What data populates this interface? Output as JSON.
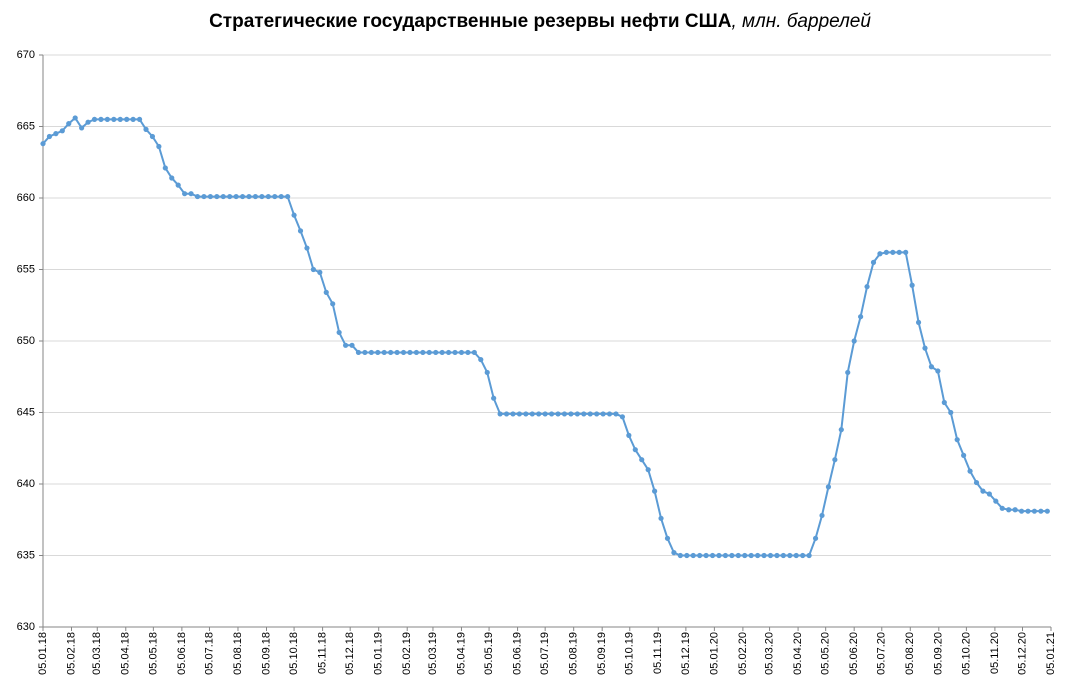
{
  "chart_data": {
    "type": "line",
    "title": "Стратегические государственные резервы нефти США",
    "subtitle": ", млн. баррелей",
    "color": "#5b9bd5",
    "grid": true,
    "x": [
      "05.01.18",
      "12.01.18",
      "19.01.18",
      "26.01.18",
      "02.02.18",
      "09.02.18",
      "16.02.18",
      "23.02.18",
      "02.03.18",
      "09.03.18",
      "16.03.18",
      "23.03.18",
      "30.03.18",
      "06.04.18",
      "13.04.18",
      "20.04.18",
      "27.04.18",
      "04.05.18",
      "11.05.18",
      "18.05.18",
      "25.05.18",
      "01.06.18",
      "08.06.18",
      "15.06.18",
      "22.06.18",
      "29.06.18",
      "06.07.18",
      "13.07.18",
      "20.07.18",
      "27.07.18",
      "03.08.18",
      "10.08.18",
      "17.08.18",
      "24.08.18",
      "31.08.18",
      "07.09.18",
      "14.09.18",
      "21.09.18",
      "28.09.18",
      "05.10.18",
      "12.10.18",
      "19.10.18",
      "26.10.18",
      "02.11.18",
      "09.11.18",
      "16.11.18",
      "23.11.18",
      "30.11.18",
      "07.12.18",
      "14.12.18",
      "21.12.18",
      "28.12.18",
      "04.01.19",
      "11.01.19",
      "18.01.19",
      "25.01.19",
      "01.02.19",
      "08.02.19",
      "15.02.19",
      "22.02.19",
      "01.03.19",
      "08.03.19",
      "15.03.19",
      "22.03.19",
      "29.03.19",
      "05.04.19",
      "12.04.19",
      "19.04.19",
      "26.04.19",
      "03.05.19",
      "10.05.19",
      "17.05.19",
      "24.05.19",
      "31.05.19",
      "07.06.19",
      "14.06.19",
      "21.06.19",
      "28.06.19",
      "05.07.19",
      "12.07.19",
      "19.07.19",
      "26.07.19",
      "02.08.19",
      "09.08.19",
      "16.08.19",
      "23.08.19",
      "30.08.19",
      "06.09.19",
      "13.09.19",
      "20.09.19",
      "27.09.19",
      "04.10.19",
      "11.10.19",
      "18.10.19",
      "25.10.19",
      "01.11.19",
      "08.11.19",
      "15.11.19",
      "22.11.19",
      "29.11.19",
      "06.12.19",
      "13.12.19",
      "20.12.19",
      "27.12.19",
      "03.01.20",
      "10.01.20",
      "17.01.20",
      "24.01.20",
      "31.01.20",
      "07.02.20",
      "14.02.20",
      "21.02.20",
      "28.02.20",
      "06.03.20",
      "13.03.20",
      "20.03.20",
      "27.03.20",
      "03.04.20",
      "10.04.20",
      "17.04.20",
      "24.04.20",
      "01.05.20",
      "08.05.20",
      "15.05.20",
      "22.05.20",
      "29.05.20",
      "05.06.20",
      "12.06.20",
      "19.06.20",
      "26.06.20",
      "03.07.20",
      "10.07.20",
      "17.07.20",
      "24.07.20",
      "31.07.20",
      "07.08.20",
      "14.08.20",
      "21.08.20",
      "28.08.20",
      "04.09.20",
      "11.09.20",
      "18.09.20",
      "25.09.20",
      "02.10.20",
      "09.10.20",
      "16.10.20",
      "23.10.20",
      "30.10.20",
      "06.11.20",
      "13.11.20",
      "20.11.20",
      "27.11.20",
      "04.12.20",
      "11.12.20",
      "18.12.20",
      "25.12.20",
      "01.01.21"
    ],
    "values": [
      663.8,
      664.3,
      664.5,
      664.7,
      665.2,
      665.6,
      664.9,
      665.3,
      665.5,
      665.5,
      665.5,
      665.5,
      665.5,
      665.5,
      665.5,
      665.5,
      664.8,
      664.3,
      663.6,
      662.1,
      661.4,
      660.9,
      660.3,
      660.3,
      660.1,
      660.1,
      660.1,
      660.1,
      660.1,
      660.1,
      660.1,
      660.1,
      660.1,
      660.1,
      660.1,
      660.1,
      660.1,
      660.1,
      660.1,
      658.8,
      657.7,
      656.5,
      655.0,
      654.8,
      653.4,
      652.6,
      650.6,
      649.7,
      649.7,
      649.2,
      649.2,
      649.2,
      649.2,
      649.2,
      649.2,
      649.2,
      649.2,
      649.2,
      649.2,
      649.2,
      649.2,
      649.2,
      649.2,
      649.2,
      649.2,
      649.2,
      649.2,
      649.2,
      648.7,
      647.8,
      646.0,
      644.9,
      644.9,
      644.9,
      644.9,
      644.9,
      644.9,
      644.9,
      644.9,
      644.9,
      644.9,
      644.9,
      644.9,
      644.9,
      644.9,
      644.9,
      644.9,
      644.9,
      644.9,
      644.9,
      644.7,
      643.4,
      642.4,
      641.7,
      641.0,
      639.5,
      637.6,
      636.2,
      635.2,
      635.0,
      635.0,
      635.0,
      635.0,
      635.0,
      635.0,
      635.0,
      635.0,
      635.0,
      635.0,
      635.0,
      635.0,
      635.0,
      635.0,
      635.0,
      635.0,
      635.0,
      635.0,
      635.0,
      635.0,
      635.0,
      636.2,
      637.8,
      639.8,
      641.7,
      643.8,
      647.8,
      650.0,
      651.7,
      653.8,
      655.5,
      656.1,
      656.2,
      656.2,
      656.2,
      656.2,
      653.9,
      651.3,
      649.5,
      648.2,
      647.9,
      645.7,
      645.0,
      643.1,
      642.0,
      640.9,
      640.1,
      639.5,
      639.3,
      638.8,
      638.3,
      638.2,
      638.2,
      638.1,
      638.1,
      638.1,
      638.1,
      638.1
    ],
    "xlim": [
      "05.01.18",
      "05.01.21"
    ],
    "xticks": [
      "05.01.18",
      "05.02.18",
      "05.03.18",
      "05.04.18",
      "05.05.18",
      "05.06.18",
      "05.07.18",
      "05.08.18",
      "05.09.18",
      "05.10.18",
      "05.11.18",
      "05.12.18",
      "05.01.19",
      "05.02.19",
      "05.03.19",
      "05.04.19",
      "05.05.19",
      "05.06.19",
      "05.07.19",
      "05.08.19",
      "05.09.19",
      "05.10.19",
      "05.11.19",
      "05.12.19",
      "05.01.20",
      "05.02.20",
      "05.03.20",
      "05.04.20",
      "05.05.20",
      "05.06.20",
      "05.07.20",
      "05.08.20",
      "05.09.20",
      "05.10.20",
      "05.11.20",
      "05.12.20",
      "05.01.21"
    ],
    "ylim": [
      630,
      670
    ],
    "yticks": [
      630,
      635,
      640,
      645,
      650,
      655,
      660,
      665,
      670
    ]
  }
}
